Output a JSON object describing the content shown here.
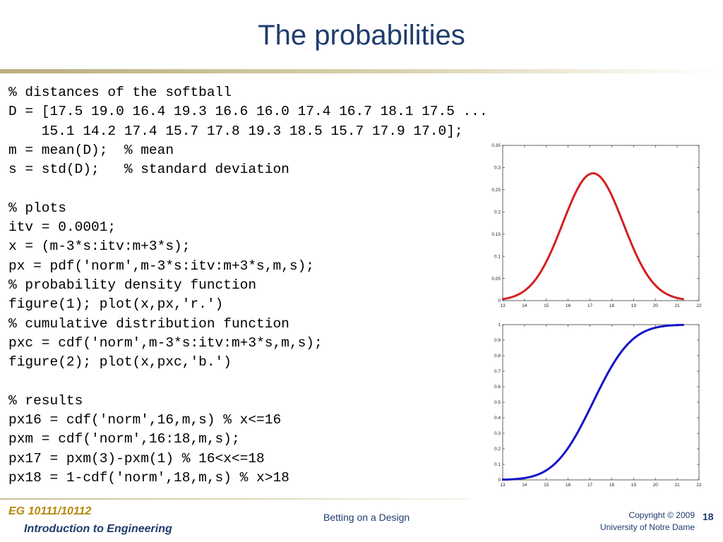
{
  "slide": {
    "title": "The probabilities",
    "code_lines": [
      "% distances of the softball",
      "D = [17.5 19.0 16.4 19.3 16.6 16.0 17.4 16.7 18.1 17.5 ...",
      "    15.1 14.2 17.4 15.7 17.8 19.3 18.5 15.7 17.9 17.0];",
      "m = mean(D);  % mean",
      "s = std(D);   % standard deviation",
      "",
      "% plots",
      "itv = 0.0001;",
      "x = (m-3*s:itv:m+3*s);",
      "px = pdf('norm',m-3*s:itv:m+3*s,m,s);",
      "% probability density function",
      "figure(1); plot(x,px,'r.')",
      "% cumulative distribution function",
      "pxc = cdf('norm',m-3*s:itv:m+3*s,m,s);",
      "figure(2); plot(x,pxc,'b.')",
      "",
      "% results",
      "px16 = cdf('norm',16,m,s) % x<=16",
      "pxm = cdf('norm',16:18,m,s);",
      "px17 = pxm(3)-pxm(1) % 16<x<=18",
      "px18 = 1-cdf('norm',18,m,s) % x>18"
    ]
  },
  "footer": {
    "course": "EG 10111/10112",
    "subtitle": "Introduction to Engineering",
    "center": "Betting on a Design",
    "copyright_line1": "Copyright © 2009",
    "copyright_line2": "University of Notre Dame",
    "page": "18"
  },
  "chart_data": [
    {
      "type": "line",
      "series": [
        {
          "color": "#d42020",
          "distribution": "normal",
          "mean": 17.14,
          "std": 1.39,
          "x_from": 12.97,
          "x_to": 21.31,
          "function": "pdf"
        }
      ],
      "xlim": [
        13,
        22
      ],
      "ylim": [
        0,
        0.35
      ],
      "x_ticks": [
        13,
        14,
        15,
        16,
        17,
        18,
        19,
        20,
        21,
        22
      ],
      "y_ticks": [
        0,
        0.05,
        0.1,
        0.15,
        0.2,
        0.25,
        0.3,
        0.35
      ],
      "x_tick_labels": [
        "13",
        "14",
        "15",
        "16",
        "17",
        "18",
        "19",
        "20",
        "21",
        "22"
      ],
      "y_tick_labels": [
        "0",
        "0.05",
        "0.1",
        "0.15",
        "0.2",
        "0.25",
        "0.3",
        "0.35"
      ],
      "grid": false,
      "title": "",
      "xlabel": "",
      "ylabel": ""
    },
    {
      "type": "line",
      "series": [
        {
          "color": "#1414c8",
          "distribution": "normal",
          "mean": 17.14,
          "std": 1.39,
          "x_from": 12.97,
          "x_to": 21.31,
          "function": "cdf"
        }
      ],
      "xlim": [
        13,
        22
      ],
      "ylim": [
        0,
        1
      ],
      "x_ticks": [
        13,
        14,
        15,
        16,
        17,
        18,
        19,
        20,
        21,
        22
      ],
      "y_ticks": [
        0,
        0.1,
        0.2,
        0.3,
        0.4,
        0.5,
        0.6,
        0.7,
        0.8,
        0.9,
        1
      ],
      "x_tick_labels": [
        "13",
        "14",
        "15",
        "16",
        "17",
        "18",
        "19",
        "20",
        "21",
        "22"
      ],
      "y_tick_labels": [
        "0",
        "0.1",
        "0.2",
        "0.3",
        "0.4",
        "0.5",
        "0.6",
        "0.7",
        "0.8",
        "0.9",
        "1"
      ],
      "grid": false,
      "title": "",
      "xlabel": "",
      "ylabel": ""
    }
  ]
}
